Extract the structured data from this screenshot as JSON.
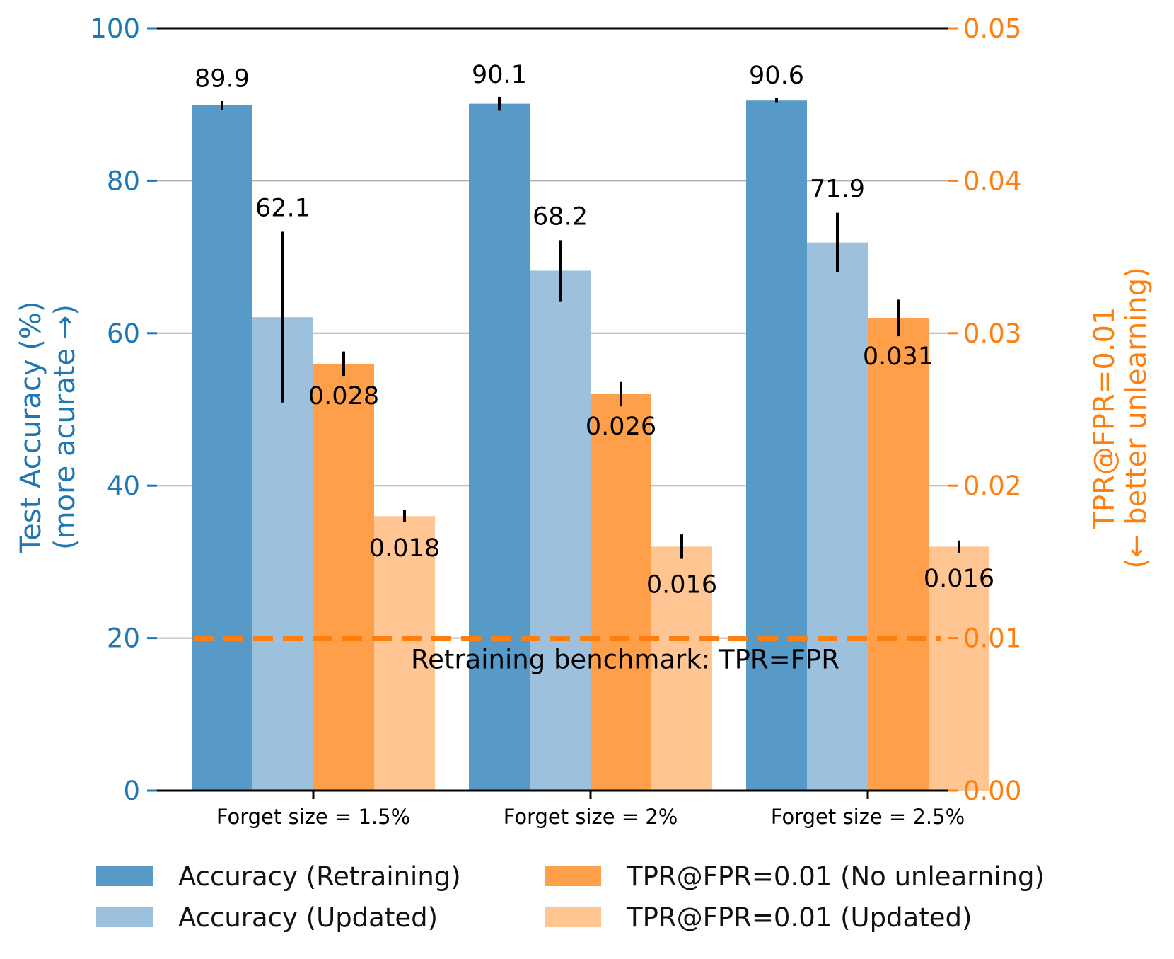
{
  "chart_data": {
    "type": "bar",
    "categories": [
      "Forget size = 1.5%",
      "Forget size = 2%",
      "Forget size = 2.5%"
    ],
    "left_axis": {
      "label_line1": "Test Accuracy (%)",
      "label_line2": "(more acurate →)",
      "ylim": [
        0,
        100
      ],
      "ticks": [
        "0",
        "20",
        "40",
        "60",
        "80",
        "100"
      ],
      "tick_values": [
        0,
        20,
        40,
        60,
        80,
        100
      ],
      "color": "#1f77b4"
    },
    "right_axis": {
      "label_line1": "TPR@FPR=0.01",
      "label_line2": "(← better unlearning)",
      "ylim": [
        0,
        0.05
      ],
      "ticks": [
        "0.00",
        "0.01",
        "0.02",
        "0.03",
        "0.04",
        "0.05"
      ],
      "tick_values": [
        0,
        0.01,
        0.02,
        0.03,
        0.04,
        0.05
      ],
      "color": "#ff7f0e"
    },
    "series": [
      {
        "name": "Accuracy (Retraining)",
        "axis": "left",
        "color": "#5799c7",
        "values": [
          89.9,
          90.1,
          90.6
        ],
        "labels": [
          "89.9",
          "90.1",
          "90.6"
        ],
        "err": [
          0.6,
          0.9,
          0.3
        ]
      },
      {
        "name": "Accuracy (Updated)",
        "axis": "left",
        "color": "#9dc1dd",
        "values": [
          62.1,
          68.2,
          71.9
        ],
        "labels": [
          "62.1",
          "68.2",
          "71.9"
        ],
        "err": [
          11.2,
          4.0,
          3.9
        ]
      },
      {
        "name": "TPR@FPR=0.01 (No unlearning)",
        "axis": "right",
        "color": "#ff9f4a",
        "values": [
          0.028,
          0.026,
          0.031
        ],
        "labels": [
          "0.028",
          "0.026",
          "0.031"
        ],
        "err": [
          0.0008,
          0.0008,
          0.0012
        ]
      },
      {
        "name": "TPR@FPR=0.01 (Updated)",
        "axis": "right",
        "color": "#ffc592",
        "values": [
          0.018,
          0.016,
          0.016
        ],
        "labels": [
          "0.018",
          "0.016",
          "0.016"
        ],
        "err": [
          0.0004,
          0.0008,
          0.0004
        ]
      }
    ],
    "reference_line": {
      "value": 0.01,
      "axis": "right",
      "label": "Retraining benchmark: TPR=FPR",
      "color": "#ff7f0e"
    },
    "grid": true
  }
}
